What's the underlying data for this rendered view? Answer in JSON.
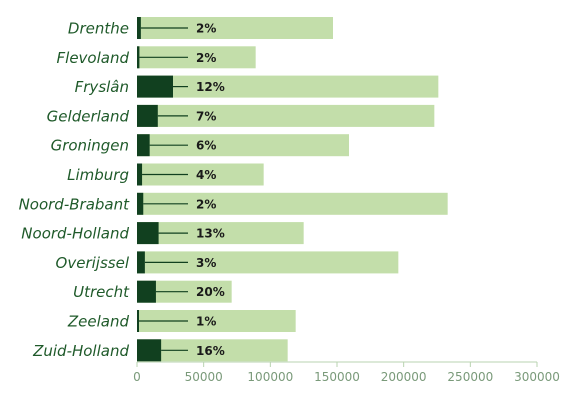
{
  "chart_data": {
    "type": "bar",
    "orientation": "horizontal",
    "stacked_overlay": true,
    "categories": [
      "Drenthe",
      "Flevoland",
      "Fryslân",
      "Gelderland",
      "Groningen",
      "Limburg",
      "Noord-Brabant",
      "Noord-Holland",
      "Overijssel",
      "Utrecht",
      "Zeeland",
      "Zuid-Holland"
    ],
    "series": [
      {
        "role": "total",
        "values": [
          147000,
          89000,
          226000,
          223000,
          159000,
          95000,
          233000,
          125000,
          196000,
          71000,
          119000,
          113000
        ]
      },
      {
        "role": "share",
        "values": [
          2900,
          1800,
          27000,
          15600,
          9500,
          3800,
          4700,
          16200,
          5900,
          14200,
          1200,
          18100
        ]
      }
    ],
    "percent_labels": [
      "2%",
      "2%",
      "12%",
      "7%",
      "6%",
      "4%",
      "2%",
      "13%",
      "3%",
      "20%",
      "1%",
      "16%"
    ],
    "xlim": [
      0,
      300000
    ],
    "x_ticks": [
      0,
      50000,
      100000,
      150000,
      200000,
      250000,
      300000
    ],
    "x_tick_labels": [
      "0",
      "50000",
      "100000",
      "150000",
      "200000",
      "250000",
      "300000"
    ],
    "grid": false,
    "colors": {
      "total": "#c3deaa",
      "share": "#11401f",
      "leader": "#11401f",
      "axis": "#b9d3b0",
      "category_text": "#1f5a2a",
      "tick_text": "#7a9a7a"
    }
  }
}
